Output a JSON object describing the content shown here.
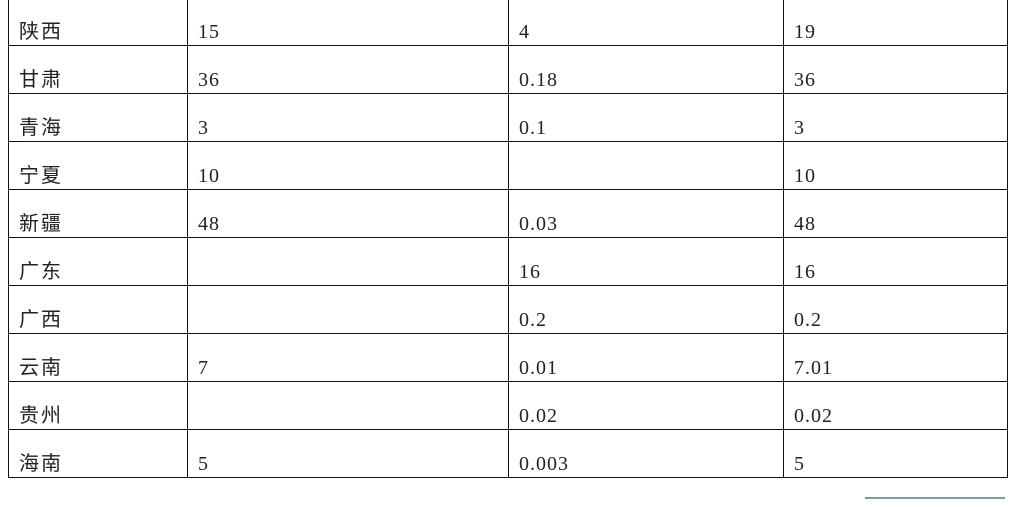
{
  "table": {
    "rows": [
      [
        "陕西",
        "15",
        "4",
        "19"
      ],
      [
        "甘肃",
        "36",
        "0.18",
        "36"
      ],
      [
        "青海",
        "3",
        "0.1",
        "3"
      ],
      [
        "宁夏",
        "10",
        "",
        "10"
      ],
      [
        "新疆",
        "48",
        "0.03",
        "48"
      ],
      [
        "广东",
        "",
        "16",
        "16"
      ],
      [
        "广西",
        "",
        "0.2",
        "0.2"
      ],
      [
        "云南",
        "7",
        "0.01",
        "7.01"
      ],
      [
        "贵州",
        "",
        "0.02",
        "0.02"
      ],
      [
        "海南",
        "5",
        "0.003",
        "5"
      ]
    ]
  }
}
